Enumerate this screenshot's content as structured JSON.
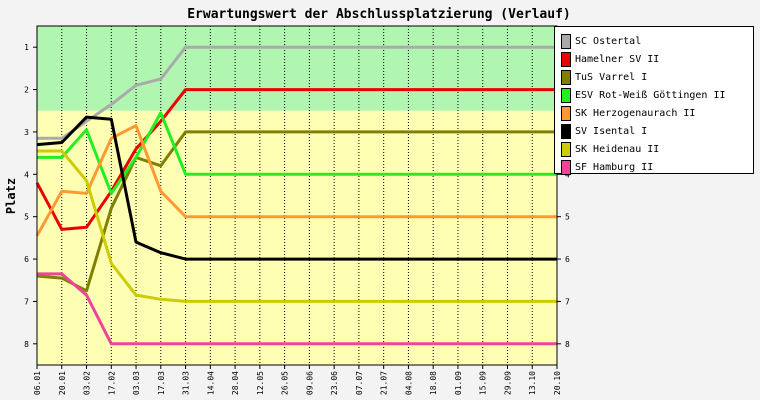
{
  "chart_data": {
    "type": "line",
    "title": "Erwartungswert der Abschlussplatzierung (Verlauf)",
    "ylabel": "Platz",
    "ylim": [
      0.5,
      8.5
    ],
    "y_inverted": true,
    "yticks": [
      1,
      2,
      3,
      4,
      5,
      6,
      7,
      8
    ],
    "bands": [
      {
        "from": 0.5,
        "to": 2.5,
        "color": "#b0f5b0"
      },
      {
        "from": 2.5,
        "to": 8.5,
        "color": "#ffffb4"
      }
    ],
    "x": [
      "06.01",
      "20.01",
      "03.02",
      "17.02",
      "03.03",
      "17.03",
      "31.03",
      "14.04",
      "28.04",
      "12.05",
      "26.05",
      "09.06",
      "23.06",
      "07.07",
      "21.07",
      "04.08",
      "18.08",
      "01.09",
      "15.09",
      "29.09",
      "13.10",
      "20.10"
    ],
    "series": [
      {
        "name": "SC Ostertal",
        "color": "#aaaaaa",
        "values": [
          3.15,
          3.15,
          2.75,
          2.35,
          1.9,
          1.75,
          1.0,
          1,
          1,
          1,
          1,
          1,
          1,
          1,
          1,
          1,
          1,
          1,
          1,
          1,
          1,
          1
        ]
      },
      {
        "name": "Hamelner SV II",
        "color": "#ee0000",
        "values": [
          4.2,
          5.3,
          5.25,
          4.4,
          3.4,
          2.75,
          2.0,
          2,
          2,
          2,
          2,
          2,
          2,
          2,
          2,
          2,
          2,
          2,
          2,
          2,
          2,
          2
        ]
      },
      {
        "name": "TuS Varrel I",
        "color": "#808000",
        "values": [
          6.4,
          6.45,
          6.75,
          4.8,
          3.6,
          3.8,
          3.0,
          3,
          3,
          3,
          3,
          3,
          3,
          3,
          3,
          3,
          3,
          3,
          3,
          3,
          3,
          3
        ]
      },
      {
        "name": "ESV Rot-Weiß Göttingen II",
        "color": "#22ee22",
        "values": [
          3.6,
          3.6,
          2.95,
          4.45,
          3.6,
          2.55,
          4.0,
          4,
          4,
          4,
          4,
          4,
          4,
          4,
          4,
          4,
          4,
          4,
          4,
          4,
          4,
          4
        ]
      },
      {
        "name": "SK Herzogenaurach II",
        "color": "#ff9933",
        "values": [
          5.45,
          4.4,
          4.45,
          3.15,
          2.85,
          4.4,
          5.0,
          5,
          5,
          5,
          5,
          5,
          5,
          5,
          5,
          5,
          5,
          5,
          5,
          5,
          5,
          5
        ]
      },
      {
        "name": "SV Isental I",
        "color": "#000000",
        "values": [
          3.3,
          3.25,
          2.65,
          2.7,
          5.6,
          5.85,
          6.0,
          6,
          6,
          6,
          6,
          6,
          6,
          6,
          6,
          6,
          6,
          6,
          6,
          6,
          6,
          6
        ]
      },
      {
        "name": "SK Heidenau II",
        "color": "#cccc00",
        "values": [
          3.45,
          3.45,
          4.15,
          6.1,
          6.85,
          6.95,
          7.0,
          7,
          7,
          7,
          7,
          7,
          7,
          7,
          7,
          7,
          7,
          7,
          7,
          7,
          7,
          7
        ]
      },
      {
        "name": "SF Hamburg II",
        "color": "#ee4499",
        "values": [
          6.35,
          6.35,
          6.85,
          8.0,
          8.0,
          8.0,
          8.0,
          8,
          8,
          8,
          8,
          8,
          8,
          8,
          8,
          8,
          8,
          8,
          8,
          8,
          8,
          8
        ]
      }
    ]
  }
}
